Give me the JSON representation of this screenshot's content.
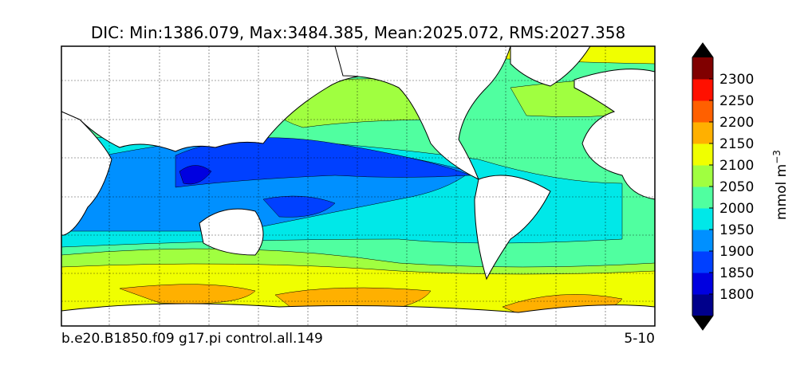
{
  "title": "DIC: Min:1386.079, Max:3484.385, Mean:2025.072, RMS:2027.358",
  "footer": {
    "left": "b.e20.B1850.f09 g17.pi control.all.149",
    "right": "5-10"
  },
  "colorbar": {
    "label": "mmol m",
    "label_sup": "−3",
    "lim": [
      1750,
      2350
    ],
    "ticks": [
      1800,
      1850,
      1900,
      1950,
      2000,
      2050,
      2100,
      2150,
      2200,
      2250,
      2300
    ],
    "colors": [
      "#00008b",
      "#0000e0",
      "#0040ff",
      "#0090ff",
      "#00e8e8",
      "#50ffa0",
      "#a0ff40",
      "#f0ff00",
      "#ffb000",
      "#ff6000",
      "#ff1000",
      "#800000"
    ],
    "extend_colors": [
      "#000000",
      "#000000"
    ]
  }
}
